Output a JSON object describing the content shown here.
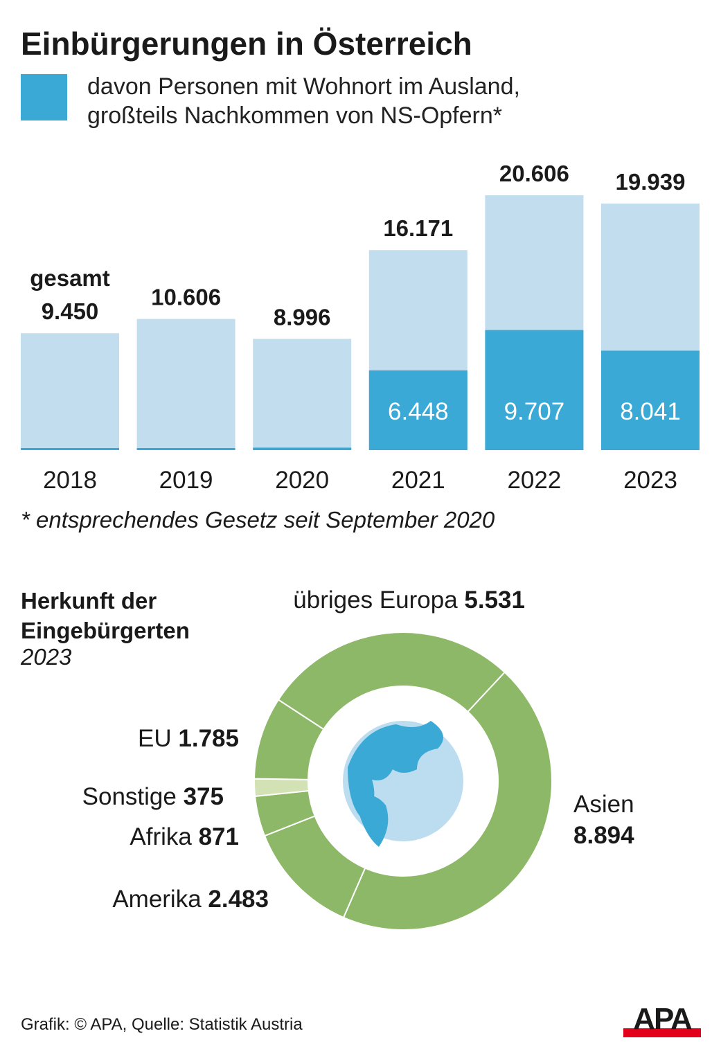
{
  "title": "Einbürgerungen in Österreich",
  "legend": {
    "line1": "davon Personen mit Wohnort im Ausland,",
    "line2": "großteils Nachkommen von NS-Opfern*",
    "color": "#3aa9d6"
  },
  "chart_data": [
    {
      "type": "bar",
      "title": "Einbürgerungen in Österreich",
      "categories": [
        "2018",
        "2019",
        "2020",
        "2021",
        "2022",
        "2023"
      ],
      "series": [
        {
          "name": "gesamt",
          "values": [
            9450,
            10606,
            8996,
            16171,
            20606,
            19939
          ],
          "labels": [
            "9.450",
            "10.606",
            "8.996",
            "16.171",
            "20.606",
            "19.939"
          ],
          "color": "#c2ddee"
        },
        {
          "name": "davon Personen mit Wohnort im Ausland, großteils Nachkommen von NS-Opfern*",
          "values": [
            80,
            80,
            200,
            6448,
            9707,
            8041
          ],
          "labels": [
            null,
            null,
            null,
            "6.448",
            "9.707",
            "8.041"
          ],
          "color": "#3aa9d6"
        }
      ],
      "first_label_prefix": "gesamt",
      "ylim": [
        0,
        21000
      ]
    },
    {
      "type": "pie",
      "title": "Herkunft der Eingebürgerten",
      "subtitle": "2023",
      "slices": [
        {
          "name": "Asien",
          "value": 8894,
          "label": "8.894",
          "color": "#8db868"
        },
        {
          "name": "Amerika",
          "value": 2483,
          "label": "2.483",
          "color": "#8db868"
        },
        {
          "name": "Afrika",
          "value": 871,
          "label": "871",
          "color": "#8db868"
        },
        {
          "name": "Sonstige",
          "value": 375,
          "label": "375",
          "color": "#d2e2b4"
        },
        {
          "name": "EU",
          "value": 1785,
          "label": "1.785",
          "color": "#8db868"
        },
        {
          "name": "übriges Europa",
          "value": 5531,
          "label": "5.531",
          "color": "#8db868"
        }
      ]
    }
  ],
  "footnote": "*  entsprechendes Gesetz seit September 2020",
  "pie_title_line1": "Herkunft der",
  "pie_title_line2": "Eingebürgerten",
  "pie_year": "2023",
  "source": "Grafik: © APA, Quelle: Statistik Austria",
  "logo_text": "APA"
}
